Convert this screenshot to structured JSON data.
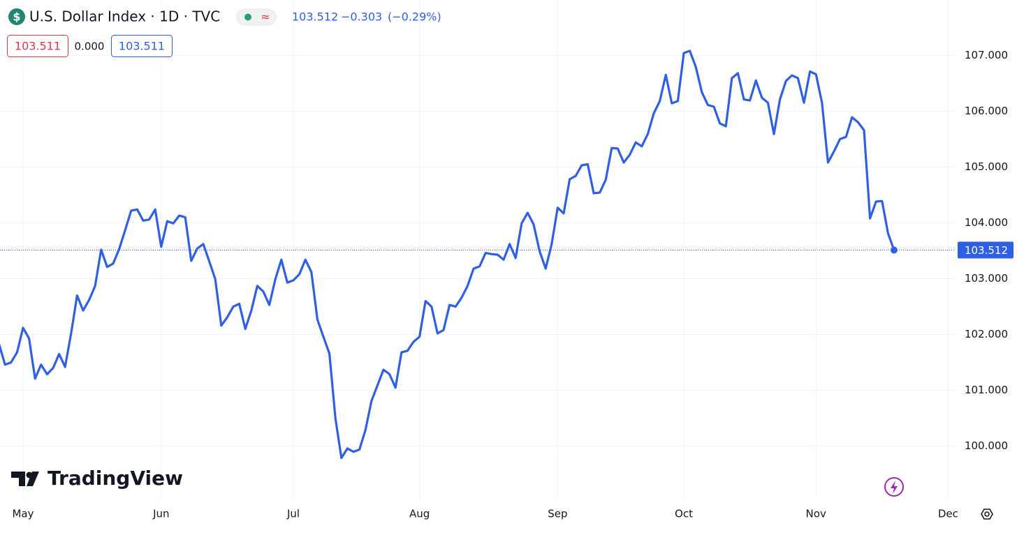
{
  "chart_data": {
    "type": "line",
    "title": "U.S. Dollar Index · 1D · TVC",
    "header_last": "103.512",
    "header_change": "−0.303",
    "header_change_pct": "(−0.29%)",
    "badges": [
      "103.511",
      "0.000",
      "103.511"
    ],
    "brand": "TradingView",
    "color": "#2f5fe3",
    "grid": true,
    "ylim": [
      99.06,
      107.99
    ],
    "yticks": [
      {
        "value": 100,
        "label": "100.000"
      },
      {
        "value": 101,
        "label": "101.000"
      },
      {
        "value": 102,
        "label": "102.000"
      },
      {
        "value": 103,
        "label": "103.000"
      },
      {
        "value": 104,
        "label": "104.000"
      },
      {
        "value": 105,
        "label": "105.000"
      },
      {
        "value": 106,
        "label": "106.000"
      },
      {
        "value": 107,
        "label": "107.000"
      }
    ],
    "categories": [
      null,
      null,
      null,
      null,
      "May",
      null,
      null,
      null,
      null,
      null,
      null,
      null,
      null,
      null,
      null,
      null,
      null,
      null,
      null,
      null,
      null,
      null,
      null,
      null,
      null,
      null,
      null,
      "Jun",
      null,
      null,
      null,
      null,
      null,
      null,
      null,
      null,
      null,
      null,
      null,
      null,
      null,
      null,
      null,
      null,
      null,
      null,
      null,
      null,
      null,
      "Jul",
      null,
      null,
      null,
      null,
      null,
      null,
      null,
      null,
      null,
      null,
      null,
      null,
      null,
      null,
      null,
      null,
      null,
      null,
      null,
      null,
      "Aug",
      null,
      null,
      null,
      null,
      null,
      null,
      null,
      null,
      null,
      null,
      null,
      null,
      null,
      null,
      null,
      null,
      null,
      null,
      null,
      null,
      null,
      null,
      "Sep",
      null,
      null,
      null,
      null,
      null,
      null,
      null,
      null,
      null,
      null,
      null,
      null,
      null,
      null,
      null,
      null,
      null,
      null,
      null,
      null,
      "Oct",
      null,
      null,
      null,
      null,
      null,
      null,
      null,
      null,
      null,
      null,
      null,
      null,
      null,
      null,
      null,
      null,
      null,
      null,
      null,
      null,
      null,
      "Nov",
      null,
      null,
      null,
      null,
      null,
      null,
      null,
      null,
      null,
      null,
      null,
      null,
      null,
      null,
      null,
      null,
      null,
      null,
      null,
      null,
      null,
      "Dec"
    ],
    "values": [
      101.83,
      101.46,
      101.5,
      101.68,
      102.12,
      101.93,
      101.21,
      101.46,
      101.29,
      101.4,
      101.65,
      101.42,
      102.02,
      102.7,
      102.43,
      102.62,
      102.87,
      103.52,
      103.21,
      103.27,
      103.53,
      103.87,
      104.22,
      104.24,
      104.04,
      104.06,
      104.24,
      103.57,
      104.03,
      103.99,
      104.13,
      104.1,
      103.32,
      103.54,
      103.62,
      103.31,
      102.99,
      102.16,
      102.31,
      102.5,
      102.55,
      102.1,
      102.43,
      102.87,
      102.77,
      102.53,
      102.99,
      103.34,
      102.93,
      102.97,
      103.08,
      103.34,
      103.12,
      102.27,
      101.96,
      101.66,
      100.5,
      99.79,
      99.96,
      99.9,
      99.94,
      100.29,
      100.81,
      101.09,
      101.37,
      101.29,
      101.05,
      101.68,
      101.71,
      101.87,
      101.96,
      102.6,
      102.5,
      102.02,
      102.08,
      102.53,
      102.5,
      102.66,
      102.87,
      103.18,
      103.22,
      103.46,
      103.44,
      103.43,
      103.34,
      103.62,
      103.37,
      103.99,
      104.18,
      103.97,
      103.49,
      103.18,
      103.62,
      104.27,
      104.17,
      104.78,
      104.84,
      105.03,
      105.05,
      104.53,
      104.54,
      104.77,
      105.34,
      105.33,
      105.08,
      105.22,
      105.44,
      105.37,
      105.59,
      105.96,
      106.18,
      106.65,
      106.14,
      106.18,
      107.04,
      107.08,
      106.79,
      106.34,
      106.11,
      106.08,
      105.78,
      105.73,
      106.59,
      106.68,
      106.21,
      106.19,
      106.55,
      106.24,
      106.15,
      105.59,
      106.21,
      106.54,
      106.64,
      106.59,
      106.15,
      106.71,
      106.66,
      106.15,
      105.08,
      105.28,
      105.5,
      105.54,
      105.89,
      105.8,
      105.66,
      104.08,
      104.38,
      104.39,
      103.81,
      103.512,
      null,
      null,
      null,
      null,
      null,
      null,
      null,
      null,
      null
    ]
  }
}
